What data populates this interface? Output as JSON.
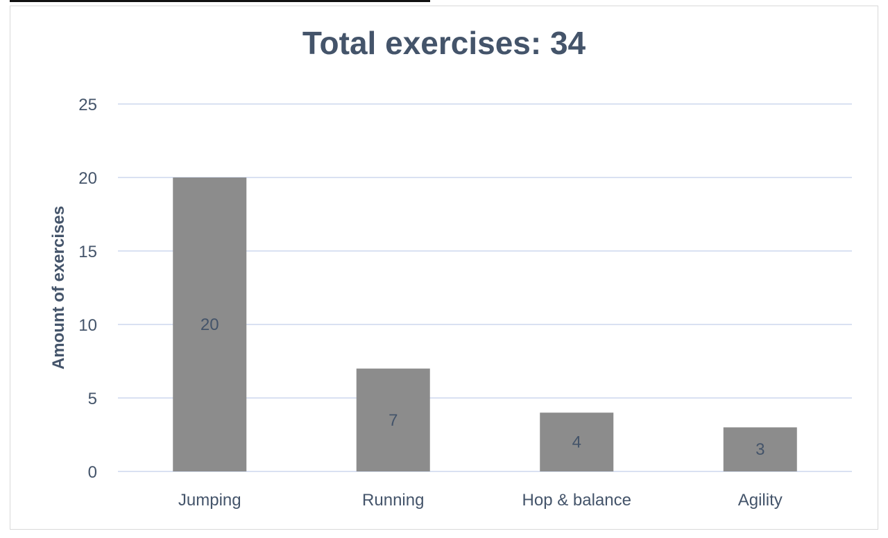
{
  "chart_data": {
    "type": "bar",
    "title": "Total exercises: 34",
    "xlabel": "",
    "ylabel": "Amount of exercises",
    "categories": [
      "Jumping",
      "Running",
      "Hop & balance",
      "Agility"
    ],
    "values": [
      20,
      7,
      4,
      3
    ],
    "ylim": [
      0,
      25
    ],
    "yticks": [
      0,
      5,
      10,
      15,
      20,
      25
    ],
    "data_labels": [
      "20",
      "7",
      "4",
      "3"
    ],
    "grid": true,
    "legend": "none",
    "colors": {
      "bar": "#8c8c8c",
      "grid": "#d9e1f2",
      "text": "#44546a"
    }
  }
}
